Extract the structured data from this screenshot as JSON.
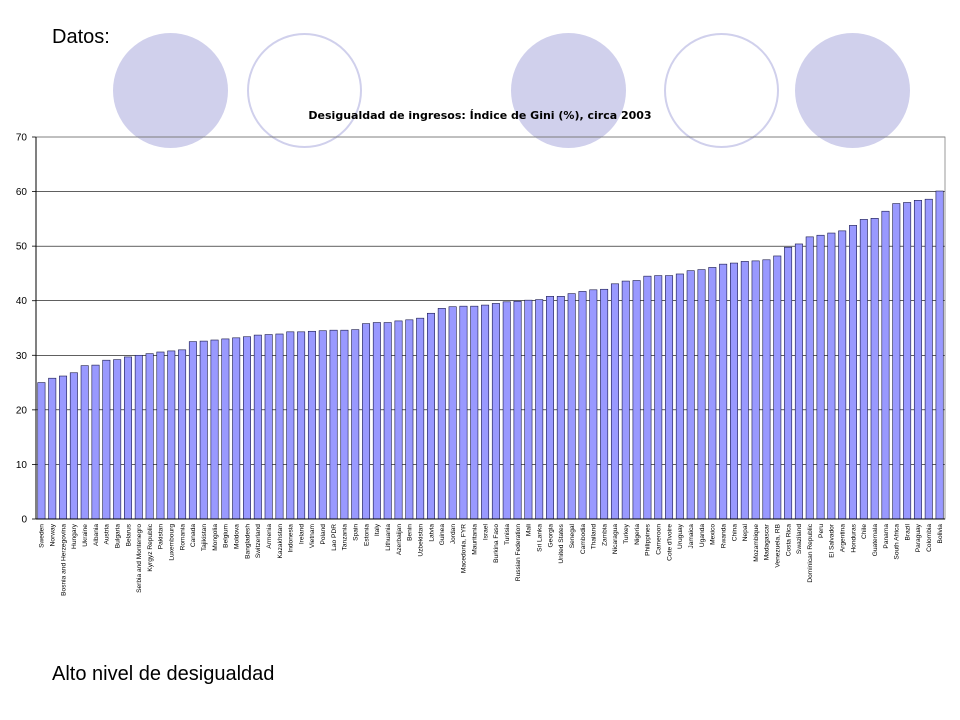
{
  "slide": {
    "heading": "Datos:",
    "footer": "Alto nivel de desigualdad",
    "decoration_color": "#d0d0ec",
    "decorations": [
      "filled-circle",
      "ring-circle",
      "filled-circle",
      "ring-circle",
      "filled-circle"
    ]
  },
  "chart_data": {
    "type": "bar",
    "title": "Desigualdad de ingresos: Índice de Gini (%), circa 2003",
    "xlabel": "",
    "ylabel": "",
    "ylim": [
      0,
      70
    ],
    "yticks": [
      0,
      10,
      20,
      30,
      40,
      50,
      60,
      70
    ],
    "grid": true,
    "legend": "none",
    "bar_color": "#9999ff",
    "categories": [
      "Sweden",
      "Norway",
      "Bosnia and Herzegovina",
      "Hungary",
      "Ukraine",
      "Albania",
      "Austria",
      "Bulgaria",
      "Belarus",
      "Serbia and Montenegro",
      "Kyrgyz Republic",
      "Pakistan",
      "Luxembourg",
      "Romania",
      "Canada",
      "Tajikistan",
      "Mongolia",
      "Belgium",
      "Moldova",
      "Bangladesh",
      "Switzerland",
      "Armenia",
      "Kazakhstan",
      "Indonesia",
      "Ireland",
      "Vietnam",
      "Poland",
      "Lao PDR",
      "Tanzania",
      "Spain",
      "Estonia",
      "Italy",
      "Lithuania",
      "Azerbaijan",
      "Benin",
      "Uzbekistan",
      "Latvia",
      "Guinea",
      "Jordan",
      "Macedonia, FYR",
      "Mauritania",
      "Israel",
      "Burkina Faso",
      "Tunisia",
      "Russian Federation",
      "Mali",
      "Sri Lanka",
      "Georgia",
      "United States",
      "Senegal",
      "Cambodia",
      "Thailand",
      "Zambia",
      "Nicaragua",
      "Turkey",
      "Nigeria",
      "Philippines",
      "Cameroon",
      "Cote d'Ivoire",
      "Uruguay",
      "Jamaica",
      "Uganda",
      "Mexico",
      "Rwanda",
      "China",
      "Nepal",
      "Mozambique",
      "Madagascar",
      "Venezuela, RB",
      "Costa Rica",
      "Swaziland",
      "Dominican Republic",
      "Peru",
      "El Salvador",
      "Argentina",
      "Honduras",
      "Chile",
      "Guatemala",
      "Panama",
      "South Africa",
      "Brazil",
      "Paraguay",
      "Colombia",
      "Bolivia"
    ],
    "values": [
      25.0,
      25.8,
      26.2,
      26.8,
      28.1,
      28.2,
      29.1,
      29.2,
      29.7,
      30.0,
      30.3,
      30.6,
      30.8,
      31.0,
      32.5,
      32.6,
      32.8,
      33.0,
      33.2,
      33.4,
      33.7,
      33.8,
      33.9,
      34.3,
      34.3,
      34.4,
      34.5,
      34.6,
      34.6,
      34.7,
      35.8,
      36.0,
      36.0,
      36.3,
      36.5,
      36.8,
      37.7,
      38.6,
      38.9,
      39.0,
      39.0,
      39.2,
      39.5,
      39.8,
      39.9,
      40.1,
      40.2,
      40.8,
      40.8,
      41.3,
      41.7,
      42.0,
      42.1,
      43.1,
      43.6,
      43.7,
      44.5,
      44.6,
      44.6,
      44.9,
      45.5,
      45.7,
      46.1,
      46.7,
      46.9,
      47.2,
      47.3,
      47.5,
      48.2,
      49.8,
      50.4,
      51.7,
      52.0,
      52.4,
      52.8,
      53.8,
      54.9,
      55.1,
      56.4,
      57.8,
      58.0,
      58.4,
      58.6,
      60.1
    ]
  }
}
